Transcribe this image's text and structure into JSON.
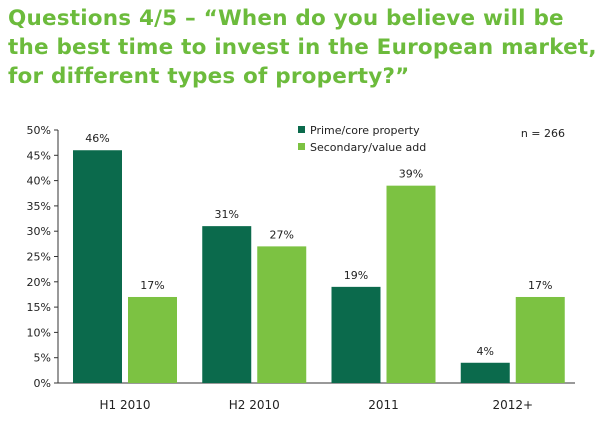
{
  "title": "Questions 4/5 – “When do you believe will be the best time to invest in the European market, for different types of property?”",
  "chart_data": {
    "type": "bar",
    "title": "Questions 4/5 – “When do you believe will be the best time to invest in the European market, for different types of property?”",
    "categories": [
      "H1 2010",
      "H2 2010",
      "2011",
      "2012+"
    ],
    "series": [
      {
        "name": "Prime/core property",
        "color": "#0b6a4c",
        "values": [
          46,
          31,
          19,
          4
        ]
      },
      {
        "name": "Secondary/value add",
        "color": "#7cc242",
        "values": [
          17,
          27,
          39,
          17
        ]
      }
    ],
    "value_labels": [
      [
        "46%",
        "31%",
        "19%",
        "4%"
      ],
      [
        "17%",
        "27%",
        "39%",
        "17%"
      ]
    ],
    "yticks": [
      "0%",
      "5%",
      "10%",
      "15%",
      "20%",
      "25%",
      "30%",
      "35%",
      "40%",
      "45%",
      "50%"
    ],
    "ylim": [
      0,
      50
    ],
    "xlabel": "",
    "ylabel": "",
    "legend": "top-center",
    "annotation": "n = 266",
    "grid": false
  }
}
